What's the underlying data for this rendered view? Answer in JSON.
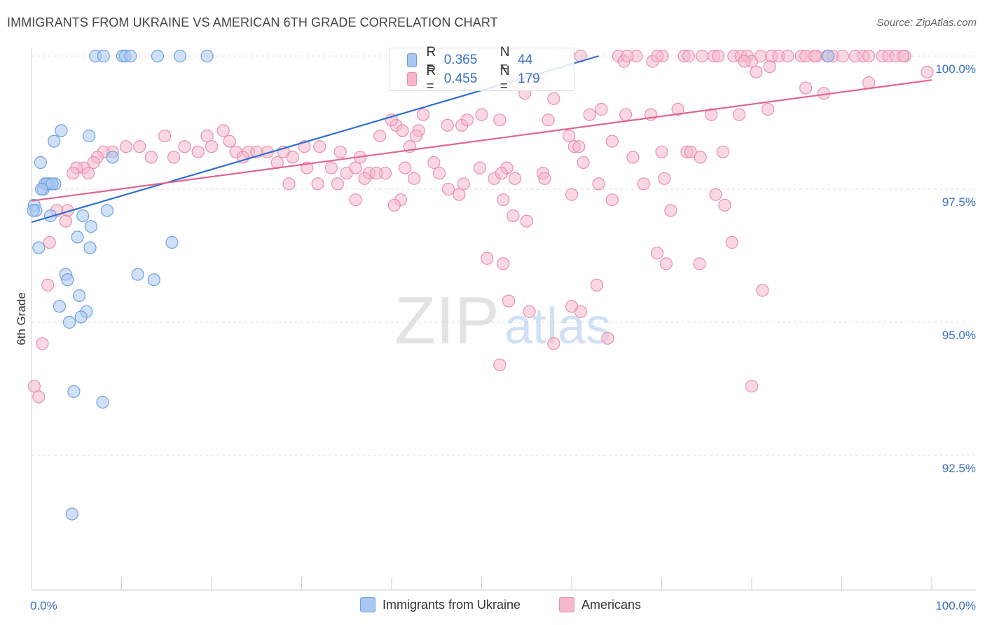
{
  "title": "IMMIGRANTS FROM UKRAINE VS AMERICAN 6TH GRADE CORRELATION CHART",
  "source": "Source: ZipAtlas.com",
  "watermark": {
    "zip": "ZIP",
    "atlas": "atlas"
  },
  "colors": {
    "blue_fill": "#a9c8f0",
    "blue_stroke": "#6f9fe0",
    "blue_line": "#2e6fd0",
    "pink_fill": "#f5b8cb",
    "pink_stroke": "#e890ad",
    "pink_line": "#e06592",
    "axis_text": "#3a6fc4",
    "grid": "#dddddd"
  },
  "legend": {
    "rows": [
      {
        "r_label": "R =",
        "r_value": "0.365",
        "n_label": "N =",
        "n_value": "44"
      },
      {
        "r_label": "R =",
        "r_value": "0.455",
        "n_label": "N =",
        "n_value": "179"
      }
    ]
  },
  "bottom_legend": {
    "ukraine": "Immigrants from Ukraine",
    "americans": "Americans"
  },
  "chart_data": {
    "type": "scatter",
    "title": "IMMIGRANTS FROM UKRAINE VS AMERICAN 6TH GRADE CORRELATION CHART",
    "xlabel": "",
    "ylabel": "6th Grade",
    "xlim": [
      0,
      100
    ],
    "ylim": [
      90.0,
      100.3
    ],
    "x_tick_labels": {
      "left": "0.0%",
      "right": "100.0%"
    },
    "y_ticks": [
      {
        "value": 100.0,
        "label": "100.0%"
      },
      {
        "value": 97.5,
        "label": "97.5%"
      },
      {
        "value": 95.0,
        "label": "95.0%"
      },
      {
        "value": 92.5,
        "label": "92.5%"
      }
    ],
    "grid": true,
    "series": [
      {
        "name": "Immigrants from Ukraine",
        "color": "blue",
        "trend": {
          "x": [
            0,
            63
          ],
          "y": [
            96.88,
            100.0
          ]
        },
        "points": [
          [
            7.1,
            100.0
          ],
          [
            8.0,
            100.0
          ],
          [
            10.1,
            100.0
          ],
          [
            10.4,
            100.0
          ],
          [
            11.0,
            100.0
          ],
          [
            14.0,
            100.0
          ],
          [
            16.5,
            100.0
          ],
          [
            19.5,
            100.0
          ],
          [
            88.5,
            100.0
          ],
          [
            3.3,
            98.6
          ],
          [
            6.4,
            98.5
          ],
          [
            2.5,
            98.4
          ],
          [
            9.0,
            98.1
          ],
          [
            1.0,
            98.0
          ],
          [
            1.5,
            97.6
          ],
          [
            2.6,
            97.6
          ],
          [
            1.3,
            97.5
          ],
          [
            2.0,
            97.6
          ],
          [
            0.3,
            97.2
          ],
          [
            0.5,
            97.1
          ],
          [
            2.1,
            97.0
          ],
          [
            5.7,
            97.0
          ],
          [
            8.4,
            97.1
          ],
          [
            6.6,
            96.8
          ],
          [
            5.1,
            96.6
          ],
          [
            15.6,
            96.5
          ],
          [
            0.8,
            96.4
          ],
          [
            6.5,
            96.4
          ],
          [
            3.8,
            95.9
          ],
          [
            11.8,
            95.9
          ],
          [
            4.0,
            95.8
          ],
          [
            13.6,
            95.8
          ],
          [
            5.3,
            95.5
          ],
          [
            3.1,
            95.3
          ],
          [
            6.1,
            95.2
          ],
          [
            5.5,
            95.1
          ],
          [
            4.2,
            95.0
          ],
          [
            4.7,
            93.7
          ],
          [
            7.9,
            93.5
          ],
          [
            4.5,
            91.4
          ],
          [
            0.2,
            97.1
          ],
          [
            1.7,
            97.6
          ],
          [
            2.3,
            97.6
          ],
          [
            1.1,
            97.5
          ]
        ]
      },
      {
        "name": "Americans",
        "color": "pink",
        "trend": {
          "x": [
            0,
            100
          ],
          "y": [
            97.28,
            99.55
          ]
        },
        "points": [
          [
            61.0,
            100.0
          ],
          [
            65.2,
            100.0
          ],
          [
            65.8,
            99.9
          ],
          [
            67.2,
            100.0
          ],
          [
            69.0,
            99.9
          ],
          [
            70.1,
            100.0
          ],
          [
            72.5,
            100.0
          ],
          [
            73.0,
            100.0
          ],
          [
            75.8,
            100.0
          ],
          [
            76.3,
            100.0
          ],
          [
            78.0,
            100.0
          ],
          [
            78.8,
            100.0
          ],
          [
            79.5,
            100.0
          ],
          [
            80.0,
            99.9
          ],
          [
            81.0,
            100.0
          ],
          [
            82.2,
            100.0
          ],
          [
            83.0,
            100.0
          ],
          [
            84.0,
            100.0
          ],
          [
            85.5,
            100.0
          ],
          [
            86.0,
            100.0
          ],
          [
            87.2,
            100.0
          ],
          [
            88.4,
            100.0
          ],
          [
            89.0,
            100.0
          ],
          [
            90.1,
            100.0
          ],
          [
            91.5,
            100.0
          ],
          [
            92.4,
            100.0
          ],
          [
            93.0,
            100.0
          ],
          [
            94.5,
            100.0
          ],
          [
            95.2,
            100.0
          ],
          [
            96.0,
            100.0
          ],
          [
            97.0,
            100.0
          ],
          [
            82.0,
            99.8
          ],
          [
            87.0,
            100.0
          ],
          [
            80.5,
            99.7
          ],
          [
            99.5,
            99.7
          ],
          [
            79.2,
            99.9
          ],
          [
            69.5,
            100.0
          ],
          [
            96.8,
            100.0
          ],
          [
            66.2,
            100.0
          ],
          [
            74.5,
            100.0
          ],
          [
            54.0,
            99.5
          ],
          [
            56.2,
            99.5
          ],
          [
            54.8,
            99.3
          ],
          [
            58.0,
            99.2
          ],
          [
            63.3,
            99.0
          ],
          [
            71.8,
            99.0
          ],
          [
            62.0,
            98.9
          ],
          [
            66.0,
            98.9
          ],
          [
            68.8,
            98.9
          ],
          [
            75.5,
            98.9
          ],
          [
            81.8,
            99.0
          ],
          [
            88.0,
            99.3
          ],
          [
            93.0,
            99.5
          ],
          [
            78.6,
            98.9
          ],
          [
            86.0,
            99.4
          ],
          [
            52.0,
            98.8
          ],
          [
            57.4,
            98.8
          ],
          [
            59.7,
            98.5
          ],
          [
            64.5,
            98.4
          ],
          [
            61.3,
            98.0
          ],
          [
            60.3,
            98.3
          ],
          [
            70.0,
            98.2
          ],
          [
            72.8,
            98.2
          ],
          [
            76.8,
            98.2
          ],
          [
            50.0,
            98.9
          ],
          [
            47.8,
            98.7
          ],
          [
            43.5,
            98.9
          ],
          [
            40.5,
            98.7
          ],
          [
            41.2,
            98.6
          ],
          [
            46.2,
            98.7
          ],
          [
            43.0,
            98.6
          ],
          [
            48.4,
            98.8
          ],
          [
            42.0,
            98.3
          ],
          [
            40.0,
            98.8
          ],
          [
            38.7,
            98.5
          ],
          [
            36.5,
            98.1
          ],
          [
            34.3,
            98.2
          ],
          [
            30.3,
            98.3
          ],
          [
            32.0,
            98.3
          ],
          [
            28.0,
            98.2
          ],
          [
            26.2,
            98.2
          ],
          [
            24.1,
            98.2
          ],
          [
            22.0,
            98.4
          ],
          [
            20.0,
            98.3
          ],
          [
            19.5,
            98.5
          ],
          [
            17.0,
            98.3
          ],
          [
            18.5,
            98.2
          ],
          [
            15.8,
            98.1
          ],
          [
            14.8,
            98.5
          ],
          [
            12.0,
            98.3
          ],
          [
            13.3,
            98.1
          ],
          [
            10.5,
            98.3
          ],
          [
            9.0,
            98.2
          ],
          [
            8.0,
            98.2
          ],
          [
            7.3,
            98.1
          ],
          [
            6.9,
            98.0
          ],
          [
            5.8,
            97.9
          ],
          [
            5.0,
            97.9
          ],
          [
            4.6,
            97.8
          ],
          [
            6.3,
            97.8
          ],
          [
            21.3,
            98.6
          ],
          [
            22.7,
            98.2
          ],
          [
            23.5,
            98.1
          ],
          [
            25.0,
            98.2
          ],
          [
            27.3,
            98.0
          ],
          [
            29.0,
            98.1
          ],
          [
            30.6,
            97.9
          ],
          [
            33.3,
            97.9
          ],
          [
            35.0,
            97.8
          ],
          [
            36.0,
            97.9
          ],
          [
            37.5,
            97.8
          ],
          [
            39.3,
            97.8
          ],
          [
            41.5,
            97.9
          ],
          [
            44.7,
            98.0
          ],
          [
            45.3,
            97.8
          ],
          [
            49.8,
            97.9
          ],
          [
            52.8,
            97.9
          ],
          [
            53.7,
            97.7
          ],
          [
            56.8,
            97.8
          ],
          [
            31.8,
            97.6
          ],
          [
            34.0,
            97.6
          ],
          [
            37.0,
            97.7
          ],
          [
            38.3,
            97.8
          ],
          [
            28.6,
            97.6
          ],
          [
            42.5,
            97.7
          ],
          [
            46.3,
            97.5
          ],
          [
            48.0,
            97.6
          ],
          [
            51.4,
            97.7
          ],
          [
            52.2,
            97.8
          ],
          [
            60.8,
            98.3
          ],
          [
            66.8,
            98.1
          ],
          [
            70.3,
            97.7
          ],
          [
            73.2,
            98.2
          ],
          [
            74.3,
            98.1
          ],
          [
            68.0,
            97.6
          ],
          [
            63.0,
            97.6
          ],
          [
            60.0,
            97.4
          ],
          [
            71.0,
            97.1
          ],
          [
            76.0,
            97.4
          ],
          [
            57.0,
            97.7
          ],
          [
            47.5,
            97.4
          ],
          [
            41.0,
            97.3
          ],
          [
            40.3,
            97.2
          ],
          [
            36.0,
            97.3
          ],
          [
            52.4,
            97.3
          ],
          [
            53.5,
            97.0
          ],
          [
            55.0,
            96.9
          ],
          [
            64.5,
            97.3
          ],
          [
            69.5,
            96.3
          ],
          [
            70.5,
            96.1
          ],
          [
            74.2,
            96.1
          ],
          [
            77.8,
            96.5
          ],
          [
            80.0,
            93.8
          ],
          [
            81.2,
            95.6
          ],
          [
            77.0,
            97.2
          ],
          [
            50.6,
            96.2
          ],
          [
            52.4,
            96.1
          ],
          [
            53.0,
            95.4
          ],
          [
            55.3,
            95.2
          ],
          [
            61.0,
            95.2
          ],
          [
            60.0,
            95.3
          ],
          [
            62.8,
            95.7
          ],
          [
            64.0,
            94.7
          ],
          [
            58.0,
            94.6
          ],
          [
            52.0,
            94.2
          ],
          [
            4.0,
            97.1
          ],
          [
            2.8,
            97.1
          ],
          [
            3.8,
            96.9
          ],
          [
            2.0,
            96.5
          ],
          [
            1.8,
            95.7
          ],
          [
            1.2,
            94.6
          ],
          [
            0.3,
            93.8
          ],
          [
            0.8,
            93.6
          ],
          [
            42.7,
            98.5
          ]
        ]
      }
    ]
  }
}
